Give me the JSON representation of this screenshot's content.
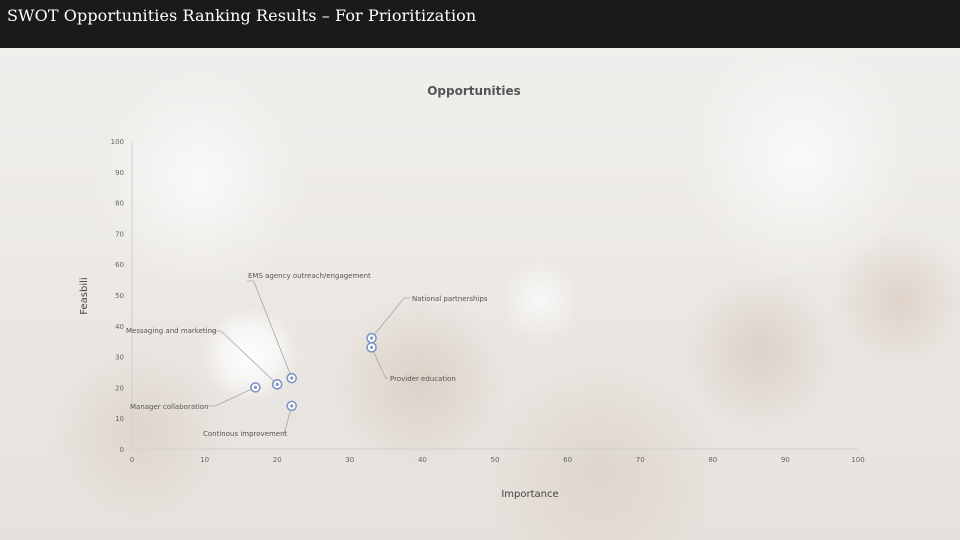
{
  "slide": {
    "title": "SWOT Opportunities Ranking Results – For Prioritization"
  },
  "chart_data": {
    "type": "scatter",
    "title": "Opportunities",
    "xlabel": "Importance",
    "ylabel": "Feasbili",
    "xlim": [
      0,
      100
    ],
    "ylim": [
      0,
      100
    ],
    "xticks": [
      "0",
      "10",
      "20",
      "30",
      "40",
      "50",
      "60",
      "70",
      "80",
      "90",
      "100"
    ],
    "yticks": [
      "0",
      "10",
      "20",
      "30",
      "40",
      "50",
      "60",
      "70",
      "80",
      "90",
      "100"
    ],
    "grid": false,
    "marker_color": "#7f95c9",
    "points": [
      {
        "x": 17,
        "y": 20
      },
      {
        "x": 20,
        "y": 21
      },
      {
        "x": 22,
        "y": 23
      },
      {
        "x": 22,
        "y": 14
      },
      {
        "x": 33,
        "y": 36
      },
      {
        "x": 33,
        "y": 33
      }
    ],
    "annotations": [
      {
        "text": "EMS agency outreach/engagement",
        "x": 22,
        "y": 23
      },
      {
        "text": "National partnerships",
        "x": 33,
        "y": 36
      },
      {
        "text": "Messaging and marketing",
        "x": 20,
        "y": 21
      },
      {
        "text": "Provider education",
        "x": 33,
        "y": 33
      },
      {
        "text": "Manager collaboration",
        "x": 17,
        "y": 20
      },
      {
        "text": "Continous improvement",
        "x": 22,
        "y": 14
      }
    ]
  }
}
